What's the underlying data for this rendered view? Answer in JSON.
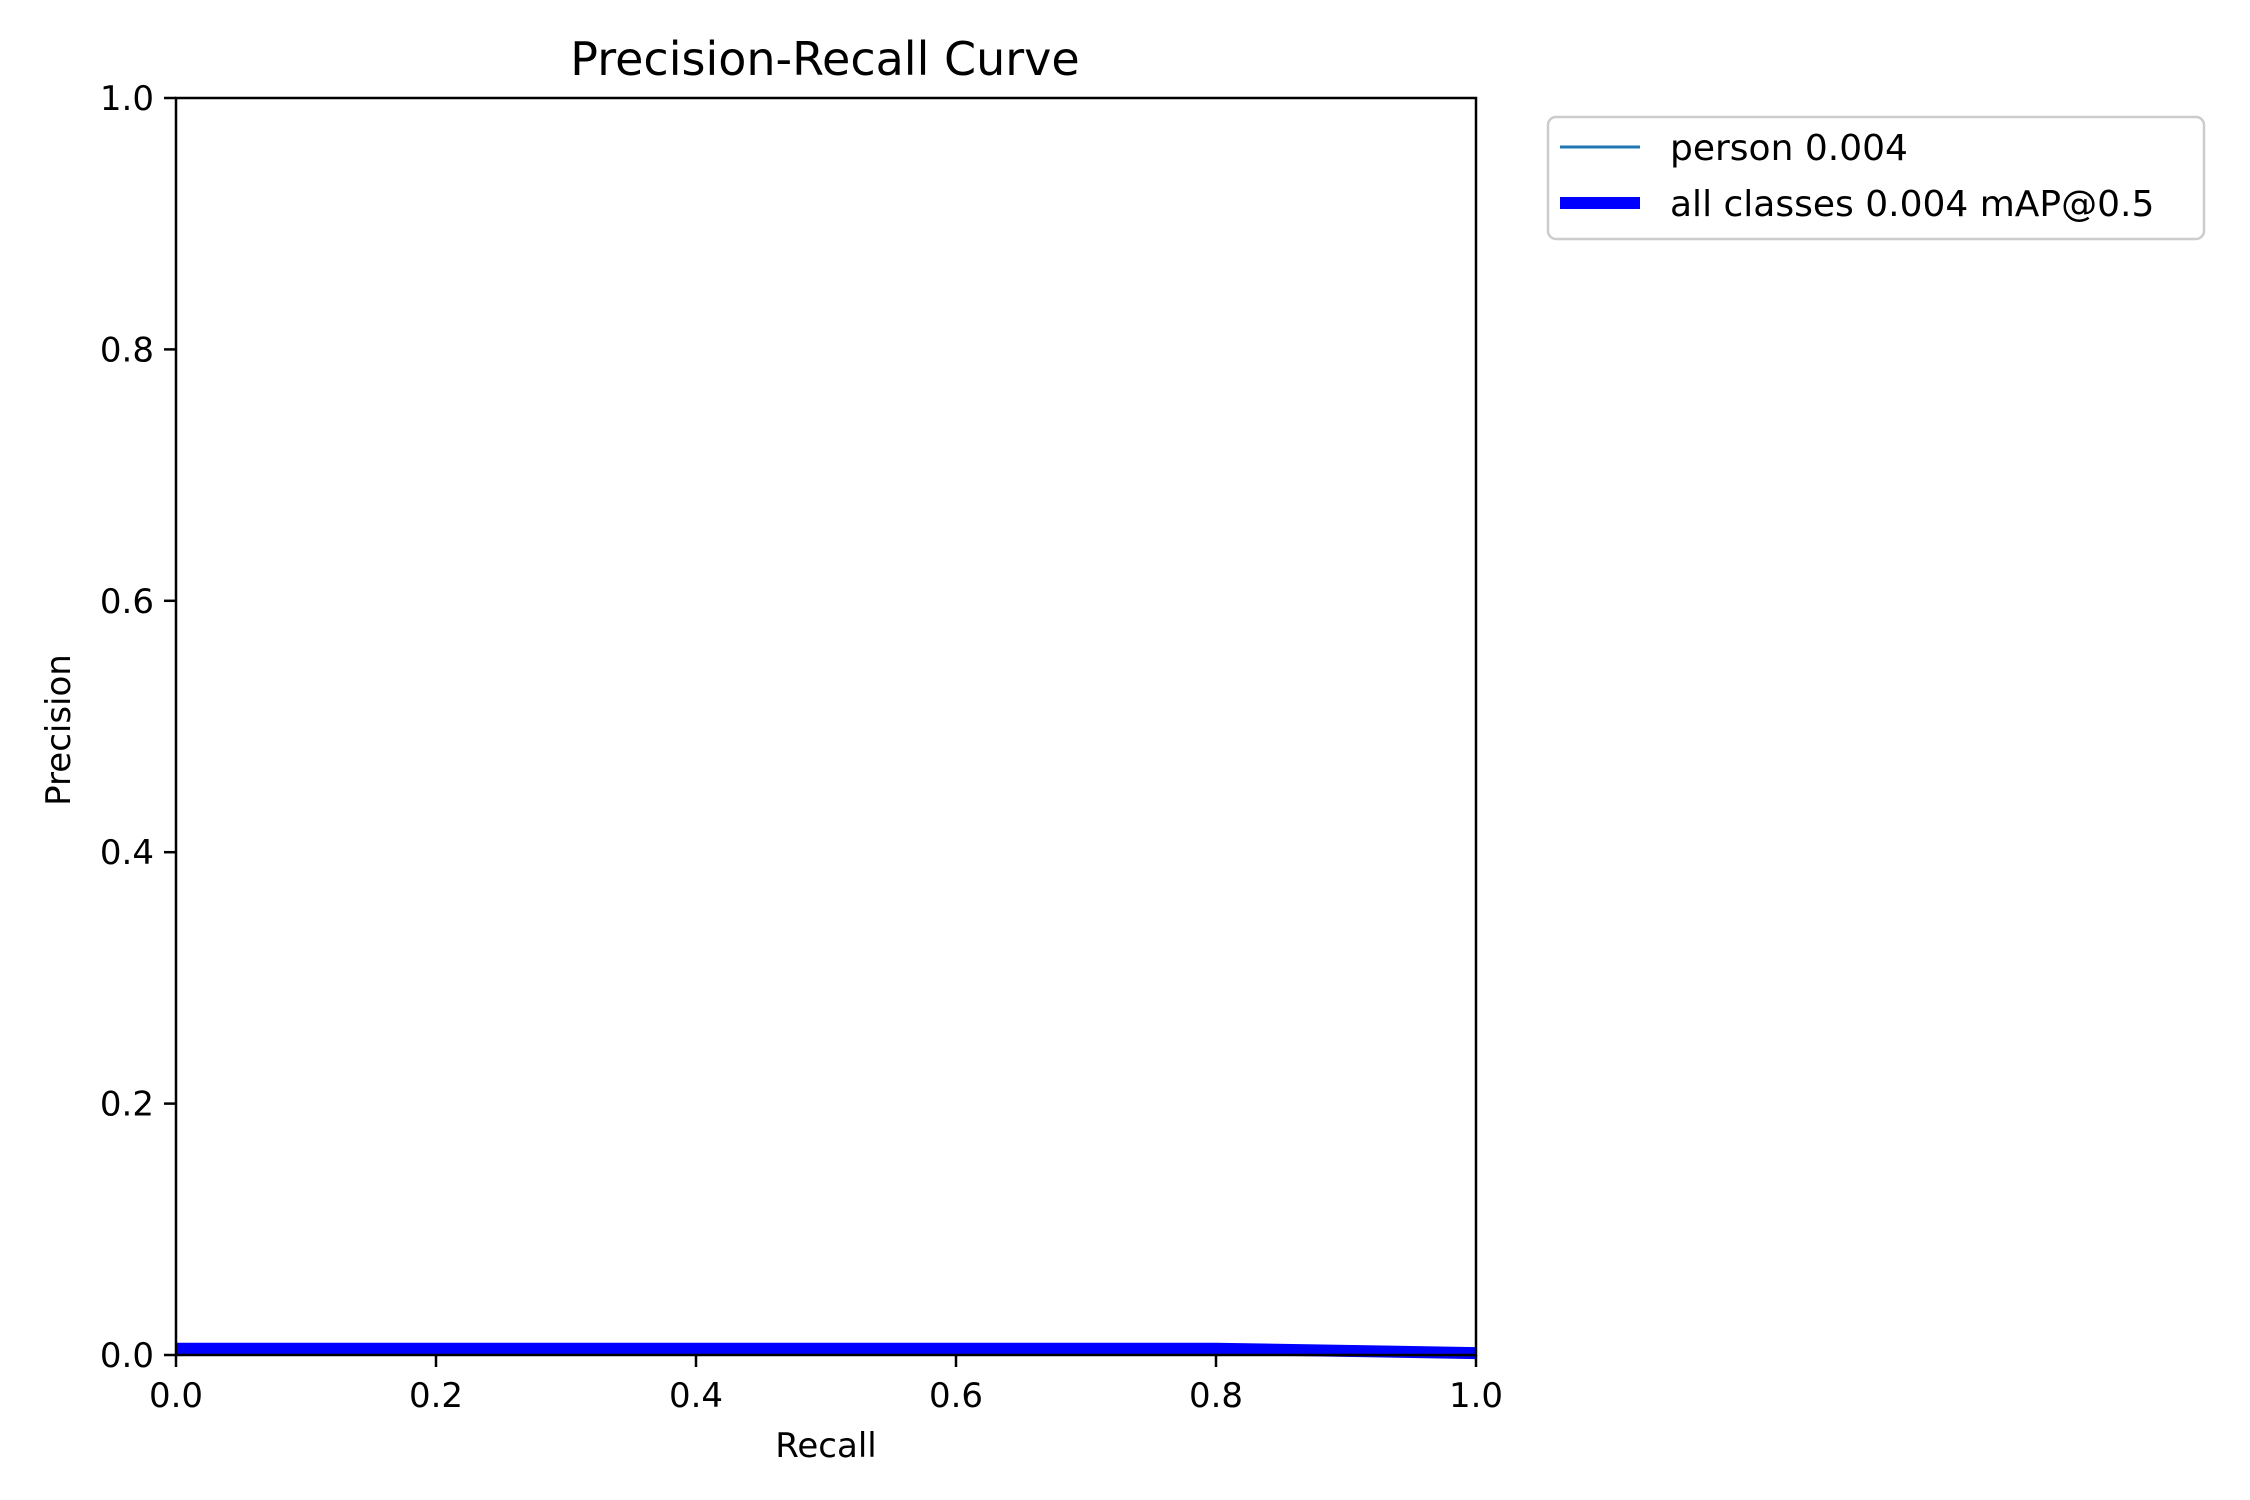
{
  "chart_data": {
    "type": "line",
    "title": "Precision-Recall Curve",
    "xlabel": "Recall",
    "ylabel": "Precision",
    "xlim": [
      0,
      1
    ],
    "ylim": [
      0,
      1
    ],
    "xticks": [
      "0.0",
      "0.2",
      "0.4",
      "0.6",
      "0.8",
      "1.0"
    ],
    "yticks": [
      "0.0",
      "0.2",
      "0.4",
      "0.6",
      "0.8",
      "1.0"
    ],
    "grid": false,
    "legend_position": "outside-top-right",
    "series": [
      {
        "name": "person 0.004",
        "color": "#1f77b4",
        "line_style": "thin",
        "x": [
          0.0,
          0.8,
          1.0
        ],
        "y": [
          0.005,
          0.005,
          0.0015
        ]
      },
      {
        "name": "all classes 0.004 mAP@0.5",
        "color": "#0000ff",
        "line_style": "thick",
        "x": [
          0.0,
          0.8,
          1.0
        ],
        "y": [
          0.005,
          0.005,
          0.0015
        ]
      }
    ]
  }
}
